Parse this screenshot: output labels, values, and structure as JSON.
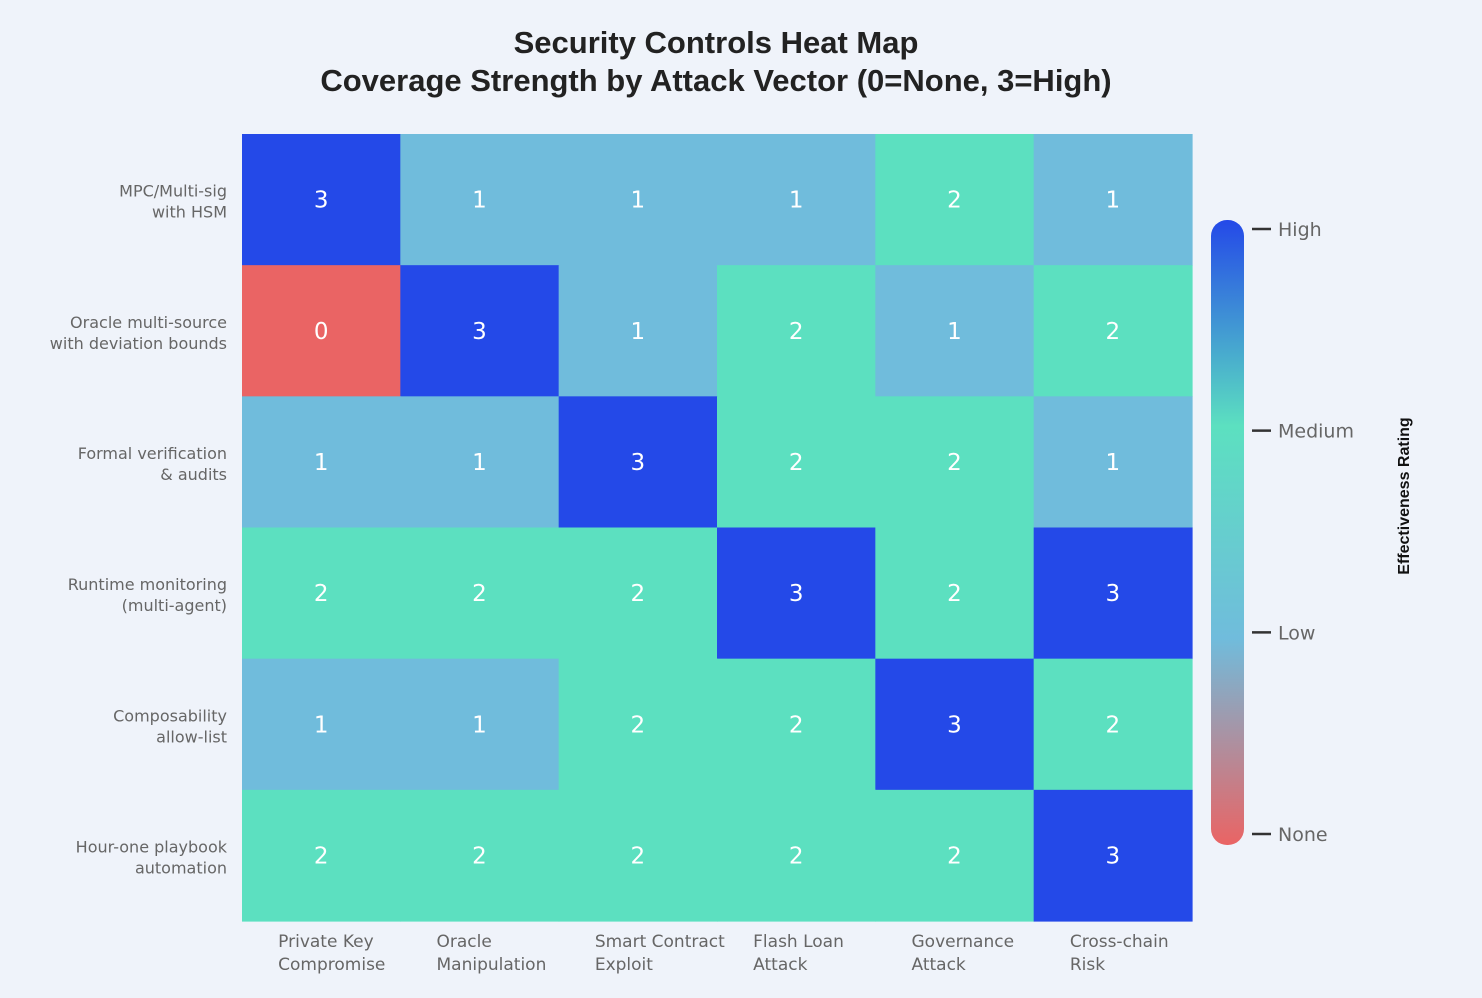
{
  "chart_data": {
    "type": "heatmap",
    "title_line1": "Security Controls Heat Map",
    "title_line2": "Coverage Strength by Attack Vector (0=None, 3=High)",
    "rows": [
      [
        "MPC/Multi-sig",
        "with HSM"
      ],
      [
        "Oracle multi-source",
        "with deviation bounds"
      ],
      [
        "Formal verification",
        "& audits"
      ],
      [
        "Runtime monitoring",
        "(multi-agent)"
      ],
      [
        "Composability",
        "allow-list"
      ],
      [
        "Hour-one playbook",
        "automation"
      ]
    ],
    "columns": [
      [
        "Private Key",
        "Compromise"
      ],
      [
        "Oracle",
        "Manipulation"
      ],
      [
        "Smart Contract",
        "Exploit"
      ],
      [
        "Flash Loan",
        "Attack"
      ],
      [
        "Governance",
        "Attack"
      ],
      [
        "Cross-chain",
        "Risk"
      ]
    ],
    "values": [
      [
        3,
        1,
        1,
        1,
        2,
        1
      ],
      [
        0,
        3,
        1,
        2,
        1,
        2
      ],
      [
        1,
        1,
        3,
        2,
        2,
        1
      ],
      [
        2,
        2,
        2,
        3,
        2,
        3
      ],
      [
        1,
        1,
        2,
        2,
        3,
        2
      ],
      [
        2,
        2,
        2,
        2,
        2,
        3
      ]
    ],
    "value_range": [
      0,
      3
    ],
    "colorscale": [
      {
        "value": 0,
        "color": "#ea6464"
      },
      {
        "value": 1,
        "color": "#70bcdc"
      },
      {
        "value": 2,
        "color": "#5ce0c0"
      },
      {
        "value": 3,
        "color": "#2449e8"
      }
    ],
    "colorbar": {
      "title": "Effectiveness Rating",
      "ticks": [
        {
          "value": 0,
          "label": "None"
        },
        {
          "value": 1,
          "label": "Low"
        },
        {
          "value": 2,
          "label": "Medium"
        },
        {
          "value": 3,
          "label": "High"
        }
      ]
    }
  }
}
